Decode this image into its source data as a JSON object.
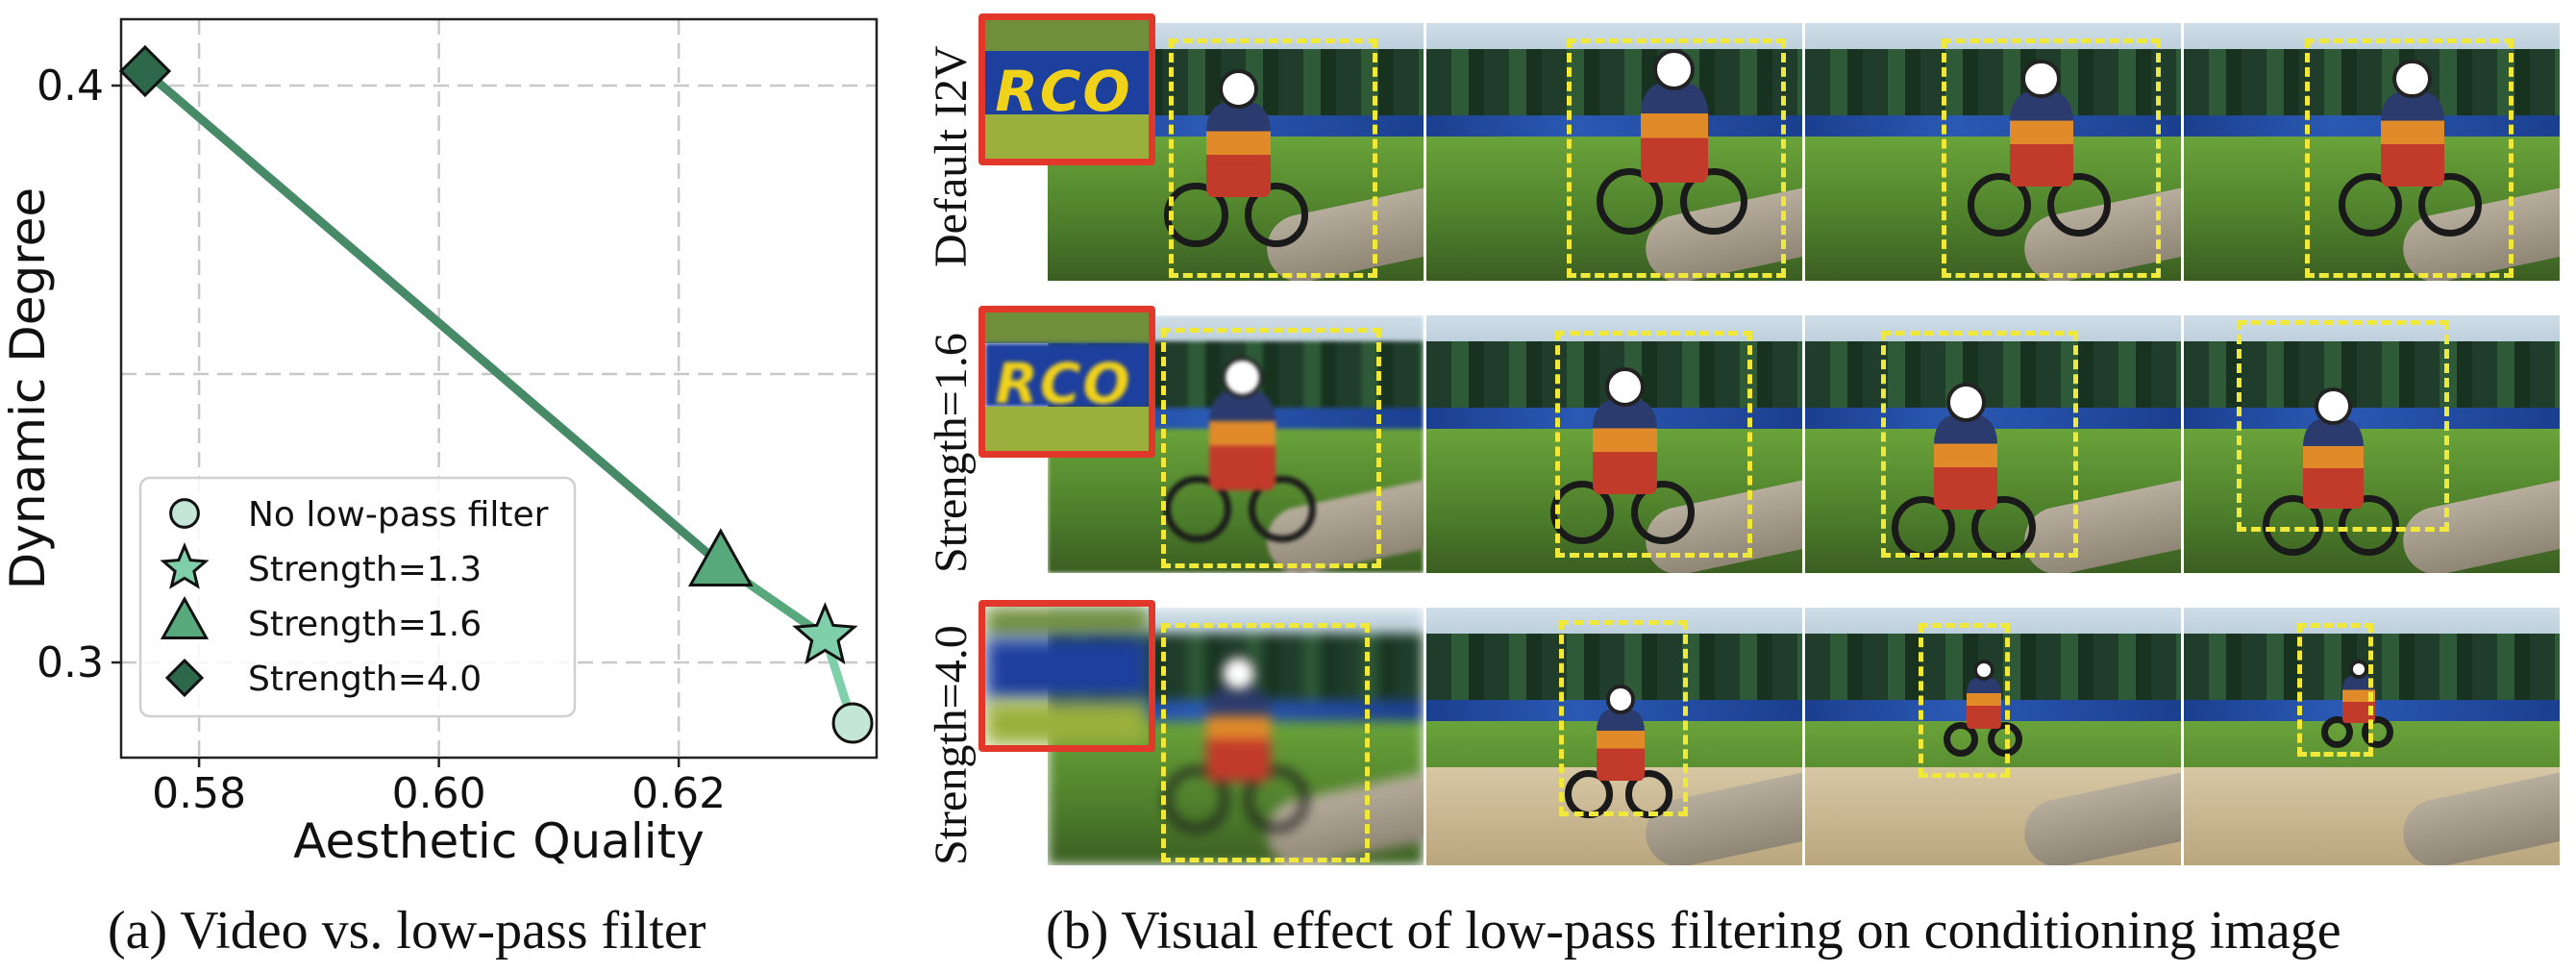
{
  "chart_data": {
    "type": "line",
    "xlabel": "Aesthetic Quality",
    "ylabel": "Dynamic Degree",
    "xlim": [
      0.5735,
      0.6365
    ],
    "ylim": [
      0.2835,
      0.4115
    ],
    "x_ticks": [
      "0.58",
      "0.60",
      "0.62"
    ],
    "x_tick_values": [
      0.58,
      0.6,
      0.62
    ],
    "y_ticks": [
      "0.3",
      "0.4"
    ],
    "y_tick_values": [
      0.3,
      0.4
    ],
    "grid": true,
    "legend_position": "bottom-left",
    "points": [
      {
        "label": "No low-pass filter",
        "x": 0.6345,
        "y": 0.2895,
        "marker": "circle",
        "color": "#c3e6d6"
      },
      {
        "label": "Strength=1.3",
        "x": 0.6322,
        "y": 0.3045,
        "marker": "star",
        "color": "#7fcfaa"
      },
      {
        "label": "Strength=1.6",
        "x": 0.6235,
        "y": 0.317,
        "marker": "triangle",
        "color": "#57a97c"
      },
      {
        "label": "Strength=4.0",
        "x": 0.5755,
        "y": 0.4025,
        "marker": "diamond",
        "color": "#2d684b"
      }
    ],
    "segment_colors": [
      "#7fcfaa",
      "#57a97c",
      "#478a67"
    ]
  },
  "captions": {
    "a": "(a) Video vs. low-pass filter",
    "b": "(b) Visual effect of low-pass filtering on conditioning image"
  },
  "panel_b": {
    "rows": [
      {
        "label": "Default  I2V",
        "inset_text": "RCO"
      },
      {
        "label": "Strength=1.6",
        "inset_text": "RCO"
      },
      {
        "label": "Strength=4.0",
        "inset_text": ""
      }
    ],
    "highlight_color": "#f1e93a",
    "inset_border_color": "#e2382b"
  }
}
